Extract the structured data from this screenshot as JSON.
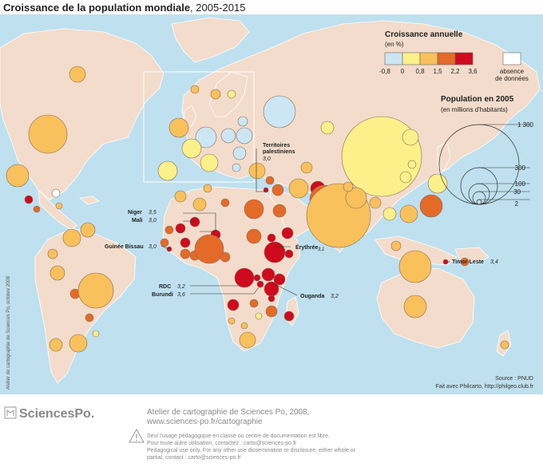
{
  "title": {
    "main": "Croissance de la population mondiale",
    "years": ", 2005-2015"
  },
  "colors": {
    "ocean": "#bfe0ef",
    "land": "#f3dccb",
    "border": "#ffffff",
    "classes": [
      "#cde6f3",
      "#fbf08a",
      "#f8c15c",
      "#e46a28",
      "#cf0a1e"
    ],
    "no_data": "#ffffff"
  },
  "legend_growth": {
    "title": "Croissance annuelle",
    "unit": "(en %)",
    "breaks": [
      "-0,8",
      "0",
      "0,8",
      "1,5",
      "2,2",
      "3,6"
    ],
    "no_data_label_1": "absence",
    "no_data_label_2": "de données"
  },
  "legend_population": {
    "title": "Population en 2005",
    "unit": "(en millions d'habitants)",
    "values": [
      "1 300",
      "300",
      "100",
      "30",
      "2"
    ]
  },
  "annotations": {
    "territoires_1": "Territoires",
    "territoires_2": "palestiniens",
    "territoires_val": "3,0",
    "niger": "Niger",
    "niger_val": "3,5",
    "mali": "Mali",
    "mali_val": "3,0",
    "guinee": "Guinée Bissau",
    "guinee_val": "3,0",
    "erythree": "Érythrée",
    "erythree_val": "3,1",
    "rdc": "RDC",
    "rdc_val": "3,2",
    "burundi": "Burundi",
    "burundi_val": "3,6",
    "ouganda": "Ouganda",
    "ouganda_val": "3,2",
    "timor": "Timor-Leste",
    "timor_val": "3,4"
  },
  "credits": {
    "side": "Atelier de cartographie de Sciences Po, octobre 2008",
    "source": "Source : PNUD",
    "software": "Fait avec Philcarto, http://philgeo.club.fr"
  },
  "footer": {
    "logo_text": "SciencesPo.",
    "line1": "Atelier de cartographie de Sciences Po, 2008,",
    "line2": "www.sciences-po.fr/cartographie",
    "notice1": "Seul l'usage pédagogique en classe ou centre de documentation est libre.",
    "notice2": "Pour toute autre utilisation, contactez : carto@sciences-po.fr",
    "notice3": "Pedagogical use only. For any other use dissemination or disclosure, either whole or",
    "notice4": "partial, contact : carto@sciences-po.fr"
  }
}
